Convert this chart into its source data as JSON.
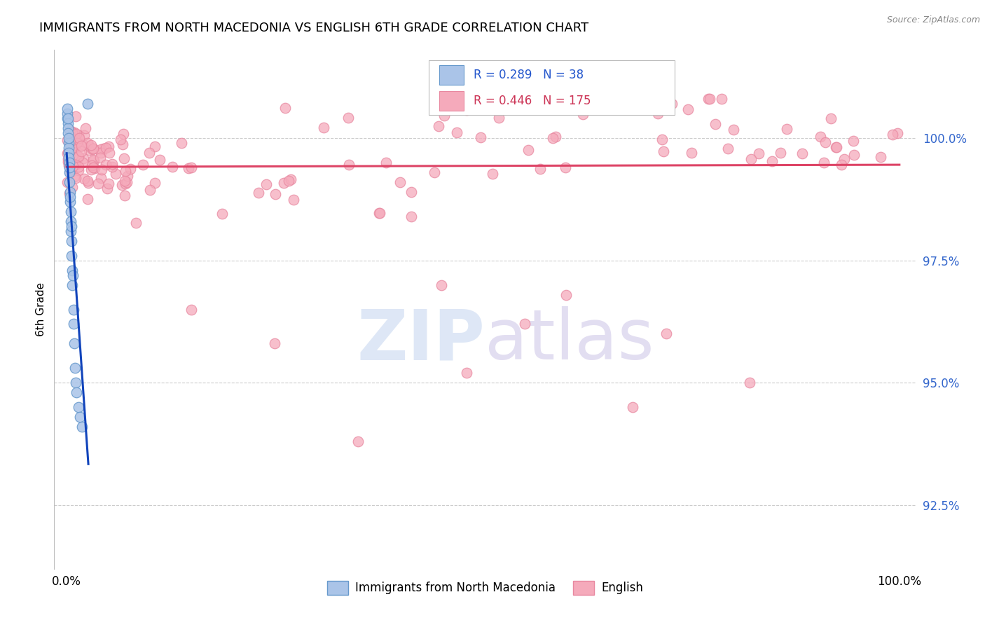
{
  "title": "IMMIGRANTS FROM NORTH MACEDONIA VS ENGLISH 6TH GRADE CORRELATION CHART",
  "source": "Source: ZipAtlas.com",
  "ylabel": "6th Grade",
  "y_tick_values": [
    92.5,
    95.0,
    97.5,
    100.0
  ],
  "legend_r_blue": "0.289",
  "legend_n_blue": "38",
  "legend_r_pink": "0.446",
  "legend_n_pink": "175",
  "blue_color": "#aac4e8",
  "pink_color": "#f5aabb",
  "blue_edge_color": "#6699cc",
  "pink_edge_color": "#e888a0",
  "blue_line_color": "#1144bb",
  "pink_line_color": "#dd4466",
  "watermark_zip_color": "#c8d8f0",
  "watermark_atlas_color": "#d0c8e8",
  "legend_text_blue": "#2255cc",
  "legend_text_pink": "#cc3355",
  "ytick_color": "#3366cc",
  "grid_color": "#cccccc"
}
